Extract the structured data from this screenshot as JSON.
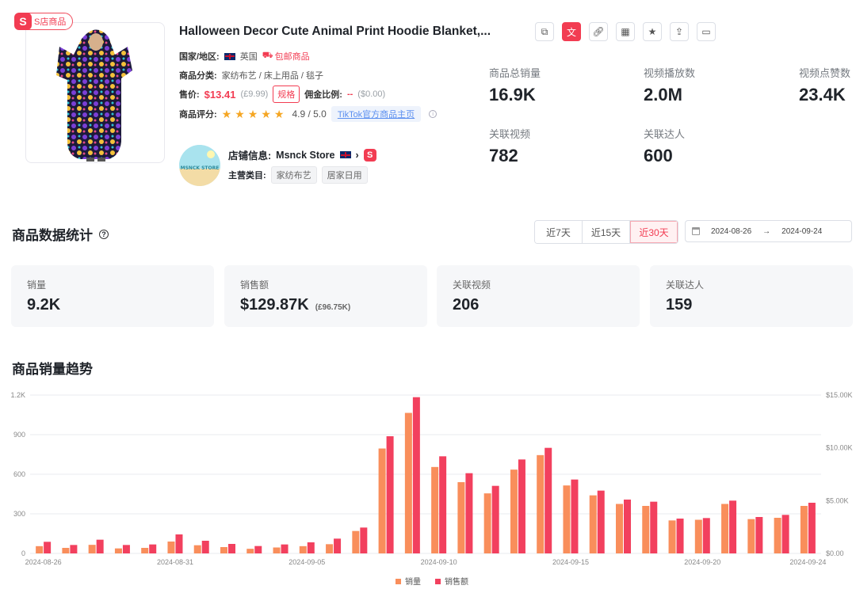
{
  "product": {
    "store_badge": "S店商品",
    "title": "Halloween Decor Cute Animal Print Hoodie Blanket,...",
    "country_label": "国家/地区:",
    "country": "英国",
    "free_shipping": "包邮商品",
    "category_label": "商品分类:",
    "category": "家纺布艺 / 床上用品 / 毯子",
    "price_label": "售价:",
    "price": "$13.41",
    "price_local": "(£9.99)",
    "spec_button": "规格",
    "commission_label": "佣金比例:",
    "commission": "--",
    "commission_amount": "($0.00)",
    "rating_label": "商品评分:",
    "rating_stars": 4.9,
    "rating": "4.9 / 5.0",
    "tiktok_link": "TikTok官方商品主页",
    "shop_label": "店铺信息:",
    "shop_name": "Msnck Store",
    "shop_avatar_text": "MSNCK STORE",
    "main_category_label": "主营类目:",
    "main_categories": [
      "家纺布艺",
      "居家日用"
    ]
  },
  "toolbar": {
    "icons": [
      "copy-icon",
      "translate-icon",
      "link-icon",
      "qrcode-icon",
      "star-icon",
      "upload-icon",
      "monitor-icon"
    ]
  },
  "top_stats": {
    "total_sales_label": "商品总销量",
    "total_sales": "16.9K",
    "video_views_label": "视频播放数",
    "video_views": "2.0M",
    "video_likes_label": "视频点赞数",
    "video_likes": "23.4K",
    "related_videos_label": "关联视频",
    "related_videos": "782",
    "related_influencers_label": "关联达人",
    "related_influencers": "600"
  },
  "data_section": {
    "title": "商品数据统计",
    "ranges": [
      "近7天",
      "近15天",
      "近30天"
    ],
    "active_range": "近30天",
    "date_start": "2024-08-26",
    "date_sep": "→",
    "date_end": "2024-09-24",
    "cards": [
      {
        "label": "销量",
        "value": "9.2K",
        "sub": ""
      },
      {
        "label": "销售额",
        "value": "$129.87K",
        "sub": "(£96.75K)"
      },
      {
        "label": "关联视频",
        "value": "206",
        "sub": ""
      },
      {
        "label": "关联达人",
        "value": "159",
        "sub": ""
      }
    ]
  },
  "trend_title": "商品销量趋势",
  "colors": {
    "accent": "#f23c52",
    "sales_bar": "#f98e5b",
    "revenue_bar": "#f2405e"
  },
  "chart_data": {
    "type": "bar",
    "dates": [
      "2024-08-26",
      "2024-08-27",
      "2024-08-28",
      "2024-08-29",
      "2024-08-30",
      "2024-08-31",
      "2024-09-01",
      "2024-09-02",
      "2024-09-03",
      "2024-09-04",
      "2024-09-05",
      "2024-09-06",
      "2024-09-07",
      "2024-09-08",
      "2024-09-09",
      "2024-09-10",
      "2024-09-11",
      "2024-09-12",
      "2024-09-13",
      "2024-09-14",
      "2024-09-15",
      "2024-09-16",
      "2024-09-17",
      "2024-09-18",
      "2024-09-19",
      "2024-09-20",
      "2024-09-21",
      "2024-09-22",
      "2024-09-23",
      "2024-09-24"
    ],
    "x_tick_labels": [
      "2024-08-26",
      "2024-08-31",
      "2024-09-05",
      "2024-09-10",
      "2024-09-15",
      "2024-09-20",
      "2024-09-24"
    ],
    "series": [
      {
        "name": "销量",
        "axis": "left",
        "values": [
          55,
          42,
          65,
          38,
          42,
          90,
          62,
          48,
          35,
          45,
          55,
          70,
          170,
          795,
          1065,
          655,
          540,
          455,
          635,
          745,
          515,
          440,
          375,
          360,
          250,
          255,
          375,
          260,
          270,
          360
        ]
      },
      {
        "name": "销售额",
        "axis": "right",
        "values": [
          1100,
          800,
          1300,
          800,
          850,
          1800,
          1200,
          900,
          700,
          850,
          1050,
          1400,
          2450,
          11100,
          14800,
          9200,
          7600,
          6400,
          8900,
          10000,
          7000,
          5950,
          5100,
          4900,
          3300,
          3350,
          5000,
          3450,
          3650,
          4800
        ]
      }
    ],
    "y_left": {
      "ticks": [
        "0",
        "300",
        "600",
        "900",
        "1.2K"
      ],
      "lim": [
        0,
        1200
      ]
    },
    "y_right": {
      "ticks": [
        "$0.00",
        "$5.00K",
        "$10.00K",
        "$15.00K"
      ],
      "lim": [
        0,
        15000
      ]
    },
    "legend": [
      "销量",
      "销售额"
    ],
    "legend_position": "bottom",
    "grid": true
  }
}
